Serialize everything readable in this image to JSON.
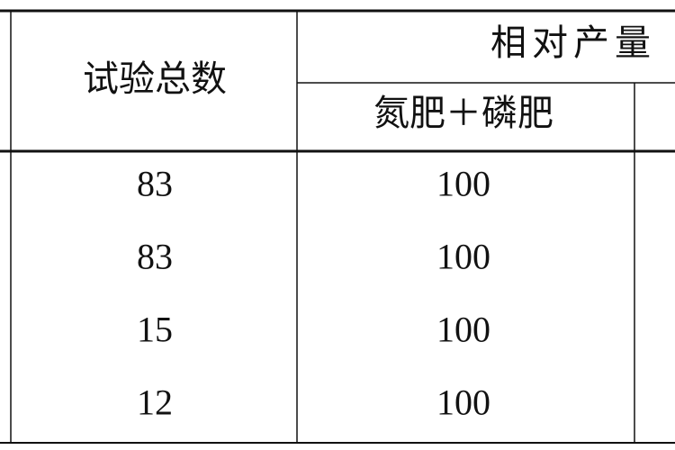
{
  "table": {
    "header": {
      "total": "试验总数",
      "relative_yield": "相对产量",
      "np": "氮肥＋磷肥"
    },
    "rows": [
      [
        83,
        100
      ],
      [
        83,
        100
      ],
      [
        15,
        100
      ],
      [
        12,
        100
      ]
    ]
  }
}
